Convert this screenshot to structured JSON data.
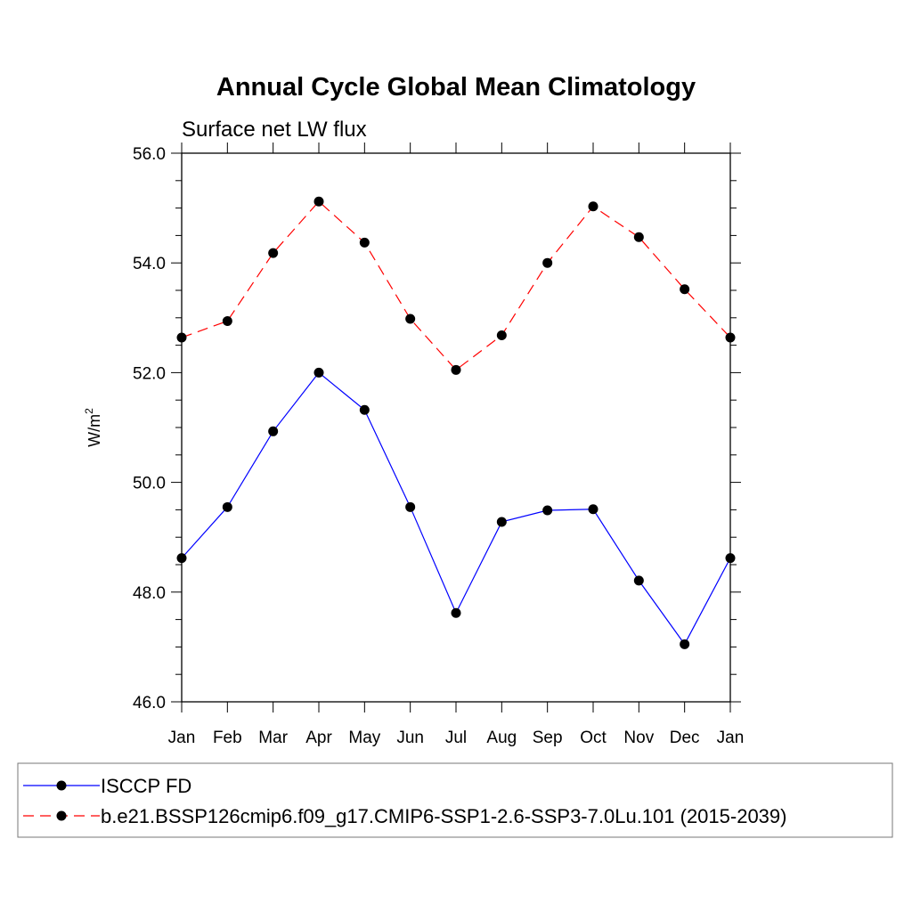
{
  "chart_data": {
    "type": "line",
    "title": "Annual Cycle Global Mean Climatology",
    "subtitle": "Surface net LW flux",
    "ylabel_base": "W/m",
    "ylabel_sup": "2",
    "xlabel": "",
    "categories": [
      "Jan",
      "Feb",
      "Mar",
      "Apr",
      "May",
      "Jun",
      "Jul",
      "Aug",
      "Sep",
      "Oct",
      "Nov",
      "Dec",
      "Jan"
    ],
    "ylim": [
      46.0,
      56.0
    ],
    "yticks": [
      "46.0",
      "48.0",
      "50.0",
      "52.0",
      "54.0",
      "56.0"
    ],
    "ytick_values": [
      46,
      48,
      50,
      52,
      54,
      56
    ],
    "grid": false,
    "legend_position": "bottom",
    "series": [
      {
        "name": "ISCCP FD",
        "color": "#0000ff",
        "dash": "solid",
        "values": [
          48.62,
          49.55,
          50.93,
          52.0,
          51.32,
          49.55,
          47.62,
          49.28,
          49.49,
          49.51,
          48.21,
          47.05,
          48.62
        ]
      },
      {
        "name": "b.e21.BSSP126cmip6.f09_g17.CMIP6-SSP1-2.6-SSP3-7.0Lu.101 (2015-2039)",
        "color": "#ff0000",
        "dash": "dashed",
        "values": [
          52.64,
          52.94,
          54.18,
          55.12,
          54.37,
          52.98,
          52.05,
          52.68,
          54.0,
          55.03,
          54.47,
          53.52,
          52.64
        ]
      }
    ]
  }
}
